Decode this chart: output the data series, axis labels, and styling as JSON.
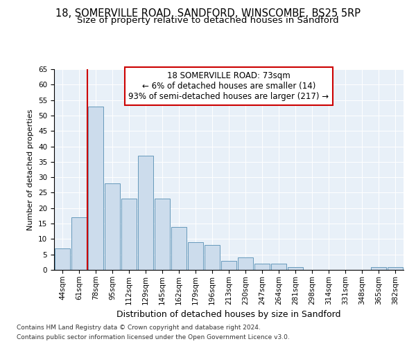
{
  "title1": "18, SOMERVILLE ROAD, SANDFORD, WINSCOMBE, BS25 5RP",
  "title2": "Size of property relative to detached houses in Sandford",
  "xlabel": "Distribution of detached houses by size in Sandford",
  "ylabel": "Number of detached properties",
  "categories": [
    "44sqm",
    "61sqm",
    "78sqm",
    "95sqm",
    "112sqm",
    "129sqm",
    "145sqm",
    "162sqm",
    "179sqm",
    "196sqm",
    "213sqm",
    "230sqm",
    "247sqm",
    "264sqm",
    "281sqm",
    "298sqm",
    "314sqm",
    "331sqm",
    "348sqm",
    "365sqm",
    "382sqm"
  ],
  "values": [
    7,
    17,
    53,
    28,
    23,
    37,
    23,
    14,
    9,
    8,
    3,
    4,
    2,
    2,
    1,
    0,
    0,
    0,
    0,
    1,
    1
  ],
  "bar_color": "#ccdcec",
  "bar_edge_color": "#6699bb",
  "annotation_text_line1": "18 SOMERVILLE ROAD: 73sqm",
  "annotation_text_line2": "← 6% of detached houses are smaller (14)",
  "annotation_text_line3": "93% of semi-detached houses are larger (217) →",
  "annotation_box_color": "#ffffff",
  "annotation_box_edge": "#cc0000",
  "vline_color": "#cc0000",
  "ylim": [
    0,
    65
  ],
  "yticks": [
    0,
    5,
    10,
    15,
    20,
    25,
    30,
    35,
    40,
    45,
    50,
    55,
    60,
    65
  ],
  "background_color": "#e8f0f8",
  "footer_line1": "Contains HM Land Registry data © Crown copyright and database right 2024.",
  "footer_line2": "Contains public sector information licensed under the Open Government Licence v3.0.",
  "title1_fontsize": 10.5,
  "title2_fontsize": 9.5,
  "xlabel_fontsize": 9,
  "ylabel_fontsize": 8,
  "tick_fontsize": 7.5,
  "annotation_fontsize": 8.5,
  "footer_fontsize": 6.5
}
